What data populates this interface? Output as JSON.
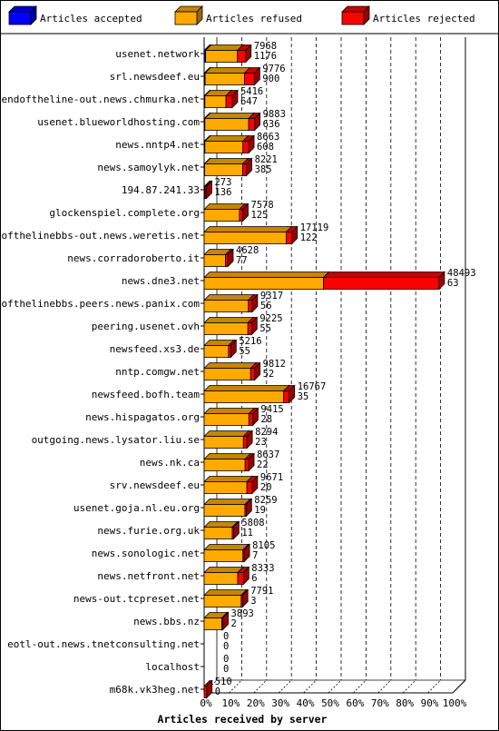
{
  "legend": [
    {
      "label": "Articles accepted",
      "color": "#0000ff"
    },
    {
      "label": "Articles refused",
      "color": "#ffaa00"
    },
    {
      "label": "Articles rejected",
      "color": "#ff0000"
    }
  ],
  "chart_data": {
    "type": "bar",
    "orientation": "horizontal",
    "stacked": true,
    "xlabel": "Articles received by server",
    "xticks": [
      "0%",
      "10%",
      "20%",
      "30%",
      "40%",
      "50%",
      "60%",
      "70%",
      "80%",
      "90%",
      "100%"
    ],
    "xlim": [
      0,
      100
    ],
    "grid": "vertical dashed",
    "legend_position": "top",
    "rows": [
      {
        "host": "usenet.network",
        "label_top": "7968",
        "label_bottom": "1176",
        "accepted": 0.6,
        "refused": 12.8,
        "rejected": 3.3
      },
      {
        "host": "srl.newsdeef.eu",
        "label_top": "9776",
        "label_bottom": "900",
        "accepted": 0.4,
        "refused": 15.8,
        "rejected": 4.0
      },
      {
        "host": "endoftheline-out.news.chmurka.net",
        "label_top": "5416",
        "label_bottom": "647",
        "accepted": 0.3,
        "refused": 8.5,
        "rejected": 2.5
      },
      {
        "host": "usenet.blueworldhosting.com",
        "label_top": "9883",
        "label_bottom": "636",
        "accepted": 0.3,
        "refused": 17.6,
        "rejected": 2.4
      },
      {
        "host": "news.nntp4.net",
        "label_top": "8663",
        "label_bottom": "608",
        "accepted": 0.3,
        "refused": 15.3,
        "rejected": 2.3
      },
      {
        "host": "news.samoylyk.net",
        "label_top": "8221",
        "label_bottom": "385",
        "accepted": 0.2,
        "refused": 15.3,
        "rejected": 1.5
      },
      {
        "host": "194.87.241.33",
        "label_top": "273",
        "label_bottom": "136",
        "accepted": 0.1,
        "refused": 0.3,
        "rejected": 0.5
      },
      {
        "host": "glockenspiel.complete.org",
        "label_top": "7578",
        "label_bottom": "125",
        "accepted": 0.0,
        "refused": 14.2,
        "rejected": 1.3
      },
      {
        "host": "endofthelinebbs-out.news.weretis.net",
        "label_top": "17119",
        "label_bottom": "122",
        "accepted": 0.0,
        "refused": 33.0,
        "rejected": 2.3
      },
      {
        "host": "news.corradoroberto.it",
        "label_top": "4628",
        "label_bottom": "77",
        "accepted": 0.0,
        "refused": 8.6,
        "rejected": 0.9
      },
      {
        "host": "news.dne3.net",
        "label_top": "48493",
        "label_bottom": "63",
        "accepted": 0.0,
        "refused": 48.0,
        "rejected": 46.5
      },
      {
        "host": "endofthelinebbs.peers.news.panix.com",
        "label_top": "9317",
        "label_bottom": "56",
        "accepted": 0.0,
        "refused": 17.8,
        "rejected": 1.5
      },
      {
        "host": "peering.usenet.ovh",
        "label_top": "9225",
        "label_bottom": "55",
        "accepted": 0.0,
        "refused": 17.6,
        "rejected": 1.5
      },
      {
        "host": "newsfeed.xs3.de",
        "label_top": "5216",
        "label_bottom": "55",
        "accepted": 0.0,
        "refused": 9.8,
        "rejected": 0.9
      },
      {
        "host": "nntp.comgw.net",
        "label_top": "9812",
        "label_bottom": "52",
        "accepted": 0.0,
        "refused": 18.7,
        "rejected": 1.6
      },
      {
        "host": "newsfeed.bofh.team",
        "label_top": "16767",
        "label_bottom": "35",
        "accepted": 0.0,
        "refused": 32.0,
        "rejected": 2.2
      },
      {
        "host": "news.hispagatos.org",
        "label_top": "9415",
        "label_bottom": "28",
        "accepted": 0.0,
        "refused": 18.0,
        "rejected": 1.5
      },
      {
        "host": "outgoing.news.lysator.liu.se",
        "label_top": "8294",
        "label_bottom": "23",
        "accepted": 0.0,
        "refused": 15.8,
        "rejected": 1.4
      },
      {
        "host": "news.nk.ca",
        "label_top": "8637",
        "label_bottom": "22",
        "accepted": 0.0,
        "refused": 16.5,
        "rejected": 1.4
      },
      {
        "host": "srv.newsdeef.eu",
        "label_top": "9671",
        "label_bottom": "20",
        "accepted": 0.0,
        "refused": 17.2,
        "rejected": 2.1
      },
      {
        "host": "usenet.goja.nl.eu.org",
        "label_top": "8259",
        "label_bottom": "19",
        "accepted": 0.0,
        "refused": 16.4,
        "rejected": 0.5
      },
      {
        "host": "news.furie.org.uk",
        "label_top": "5808",
        "label_bottom": "11",
        "accepted": 0.0,
        "refused": 11.3,
        "rejected": 0.5
      },
      {
        "host": "news.sonologic.net",
        "label_top": "8105",
        "label_bottom": "7",
        "accepted": 0.0,
        "refused": 15.6,
        "rejected": 0.5
      },
      {
        "host": "news.netfront.net",
        "label_top": "8333",
        "label_bottom": "6",
        "accepted": 0.0,
        "refused": 13.5,
        "rejected": 2.3
      },
      {
        "host": "news-out.tcpreset.net",
        "label_top": "7791",
        "label_bottom": "3",
        "accepted": 0.0,
        "refused": 14.9,
        "rejected": 0.5
      },
      {
        "host": "news.bbs.nz",
        "label_top": "3893",
        "label_bottom": "2",
        "accepted": 0.0,
        "refused": 7.1,
        "rejected": 0.4
      },
      {
        "host": "eotl-out.news.tnetconsulting.net",
        "label_top": "0",
        "label_bottom": "0",
        "accepted": 0.0,
        "refused": 0.0,
        "rejected": 0.0
      },
      {
        "host": "localhost",
        "label_top": "0",
        "label_bottom": "0",
        "accepted": 0.0,
        "refused": 0.0,
        "rejected": 0.0
      },
      {
        "host": "m68k.vk3heg.net",
        "label_top": "510",
        "label_bottom": "0",
        "accepted": 0.0,
        "refused": 0.0,
        "rejected": 1.0
      }
    ]
  }
}
